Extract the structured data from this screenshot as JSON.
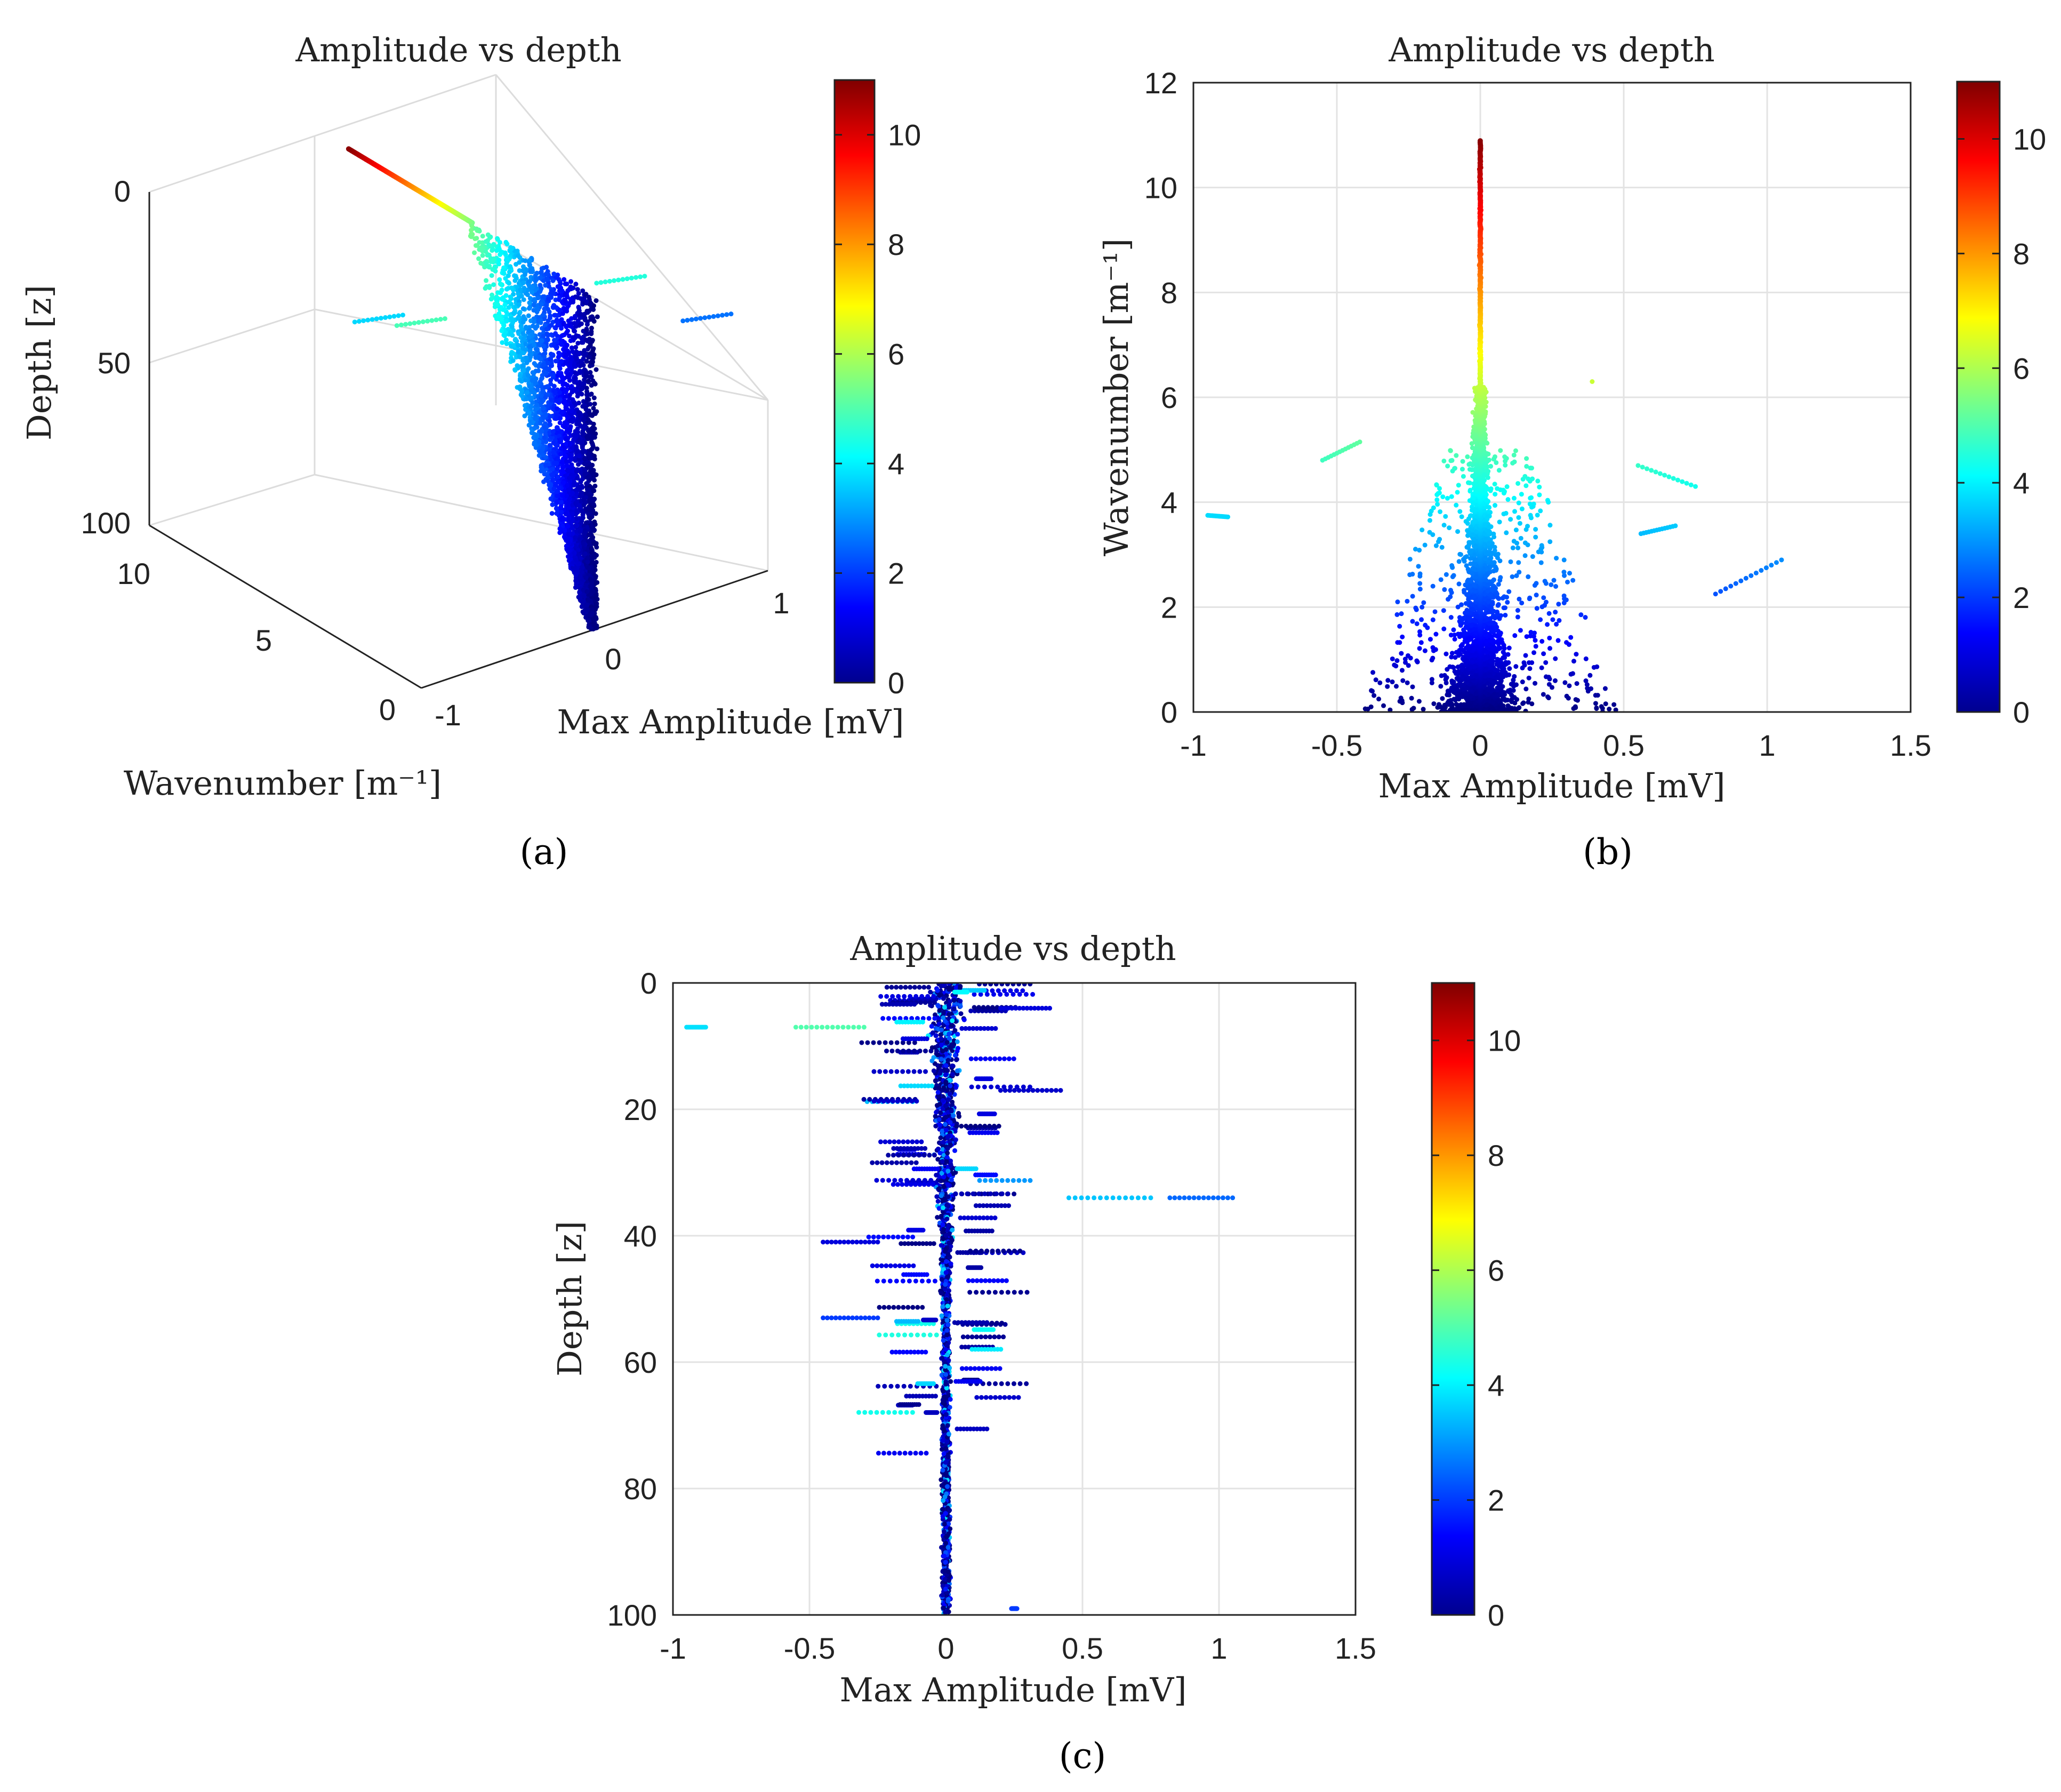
{
  "panel_labels": [
    "(a)",
    "(b)",
    "(c)"
  ],
  "chart_data": [
    {
      "id": "a",
      "type": "scatter",
      "projection": "3d",
      "title": "Amplitude vs depth",
      "xlabel": "Max Amplitude [mV]",
      "ylabel": "Wavenumber [m⁻¹]",
      "zlabel": "Depth [z]",
      "xlim": [
        -1,
        1
      ],
      "ylim": [
        0,
        12
      ],
      "zlim": [
        0,
        100
      ],
      "z_reversed": true,
      "xticks": [
        -1,
        0,
        1
      ],
      "yticks": [
        0,
        5,
        10
      ],
      "zticks": [
        0,
        50,
        100
      ],
      "colormap": "jet",
      "clim": [
        0,
        11
      ],
      "colorbar_ticks": [
        0,
        2,
        4,
        6,
        8,
        10
      ],
      "color_variable": "Wavenumber",
      "notes": "points concentrated near Max Amplitude 0; wavenumber decays with depth"
    },
    {
      "id": "b",
      "type": "scatter",
      "title": "Amplitude vs depth",
      "xlabel": "Max Amplitude [mV]",
      "ylabel": "Wavenumber [m⁻¹]",
      "xlim": [
        -1,
        1.5
      ],
      "ylim": [
        0,
        12
      ],
      "xticks": [
        "-1",
        "-0.5",
        "0",
        "0.5",
        "1",
        "1.5"
      ],
      "yticks": [
        "0",
        "2",
        "4",
        "6",
        "8",
        "10",
        "12"
      ],
      "grid": true,
      "colormap": "jet",
      "clim": [
        0,
        11
      ],
      "colorbar_ticks": [
        "0",
        "2",
        "4",
        "6",
        "8",
        "10"
      ],
      "spine": {
        "x": 0,
        "y_range": [
          0,
          10.9
        ]
      },
      "outlier_tracks": [
        {
          "x": [
            -0.95,
            -0.88
          ],
          "y": [
            3.75,
            3.72
          ]
        },
        {
          "x": [
            -0.55,
            -0.42
          ],
          "y": [
            4.8,
            5.15
          ]
        },
        {
          "x": [
            0.55,
            0.75
          ],
          "y": [
            4.7,
            4.3
          ]
        },
        {
          "x": [
            0.82,
            1.05
          ],
          "y": [
            2.25,
            2.9
          ]
        },
        {
          "x": [
            0.56,
            0.68
          ],
          "y": [
            3.4,
            3.55
          ]
        },
        {
          "x": [
            0.39
          ],
          "y": [
            6.3
          ]
        }
      ]
    },
    {
      "id": "c",
      "type": "scatter",
      "title": "Amplitude vs depth",
      "xlabel": "Max Amplitude [mV]",
      "ylabel": "Depth [z]",
      "xlim": [
        -1,
        1.5
      ],
      "ylim": [
        0,
        100
      ],
      "y_reversed": true,
      "xticks": [
        "-1",
        "-0.5",
        "0",
        "0.5",
        "1",
        "1.5"
      ],
      "yticks": [
        "0",
        "20",
        "40",
        "60",
        "80",
        "100"
      ],
      "grid": true,
      "colormap": "jet",
      "clim": [
        0,
        11
      ],
      "colorbar_ticks": [
        "0",
        "2",
        "4",
        "6",
        "8",
        "10"
      ],
      "horizontal_tracks": [
        {
          "depth": 7,
          "x": [
            -0.95,
            -0.88
          ],
          "wavenumber": 3.8
        },
        {
          "depth": 7,
          "x": [
            -0.55,
            -0.3
          ],
          "wavenumber": 5.0
        },
        {
          "depth": 4,
          "x": [
            0.2,
            0.38
          ],
          "wavenumber": 1.0
        },
        {
          "depth": 34,
          "x": [
            0.45,
            0.75
          ],
          "wavenumber": 3.5
        },
        {
          "depth": 34,
          "x": [
            0.82,
            1.05
          ],
          "wavenumber": 2.5
        },
        {
          "depth": 53,
          "x": [
            -0.45,
            -0.25
          ],
          "wavenumber": 2.0
        },
        {
          "depth": 17,
          "x": [
            0.2,
            0.42
          ],
          "wavenumber": 0.8
        },
        {
          "depth": 41,
          "x": [
            -0.45,
            -0.25
          ],
          "wavenumber": 1.0
        },
        {
          "depth": 99,
          "x": [
            0.24,
            0.26
          ],
          "wavenumber": 2.0
        }
      ]
    }
  ],
  "colors": {
    "axis": "#222222",
    "grid": "#e3e3e3"
  }
}
